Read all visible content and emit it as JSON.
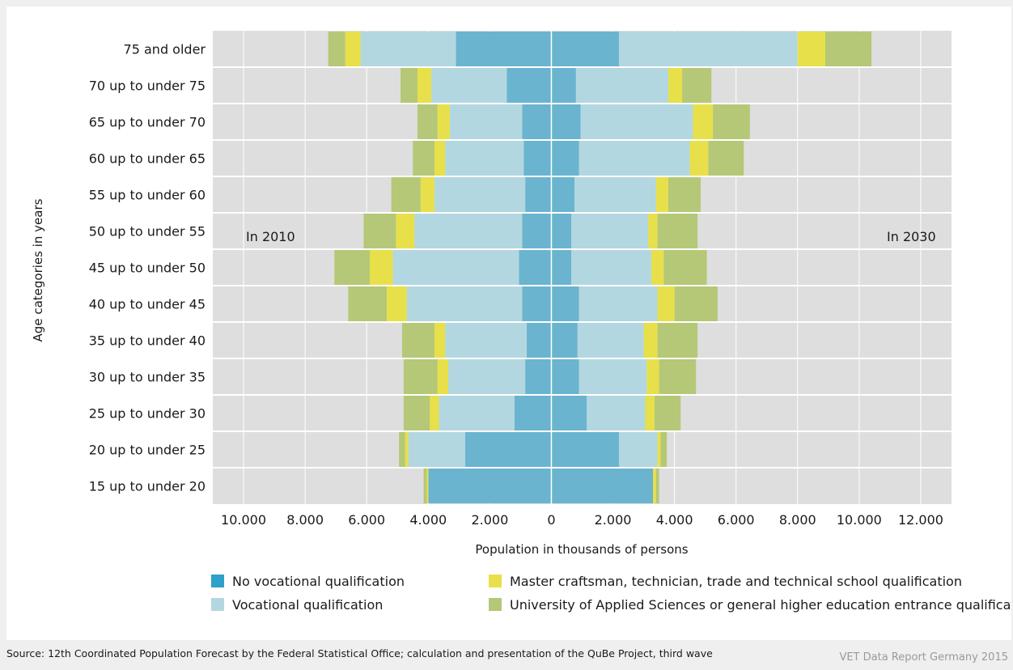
{
  "chart_data": {
    "type": "bar",
    "orientation": "horizontal-population-pyramid",
    "categories": [
      "75 and older",
      "70 up to under 75",
      "65 up to under 70",
      "60 up to under 65",
      "55 up to under 60",
      "50 up to under 55",
      "45 up to under 50",
      "40 up to under 45",
      "35 up to under 40",
      "30 up to under 35",
      "25 up to under 30",
      "20 up to under 25",
      "15 up to under 20"
    ],
    "ylabel": "Age categories in years",
    "xlabel": "Population in thousands of persons",
    "xlim": [
      -11000,
      13000
    ],
    "xticks": [
      {
        "value": -10000,
        "label": "10.000"
      },
      {
        "value": -8000,
        "label": "8.000"
      },
      {
        "value": -6000,
        "label": "6.000"
      },
      {
        "value": -4000,
        "label": "4.000"
      },
      {
        "value": -2000,
        "label": "2.000"
      },
      {
        "value": 0,
        "label": "0"
      },
      {
        "value": 2000,
        "label": "2.000"
      },
      {
        "value": 4000,
        "label": "4.000"
      },
      {
        "value": 6000,
        "label": "6.000"
      },
      {
        "value": 8000,
        "label": "8.000"
      },
      {
        "value": 10000,
        "label": "10.000"
      },
      {
        "value": 12000,
        "label": "12.000"
      }
    ],
    "grid": true,
    "left_label": "In 2010",
    "right_label": "In 2030",
    "series": [
      {
        "name": "No vocational qualification",
        "color": "#6ab4d0",
        "left": [
          3100,
          1450,
          950,
          900,
          850,
          950,
          1050,
          950,
          800,
          850,
          1200,
          2800,
          4000
        ],
        "right": [
          2200,
          800,
          950,
          900,
          750,
          650,
          650,
          900,
          850,
          900,
          1150,
          2200,
          3300
        ]
      },
      {
        "name": "Vocational qualification",
        "color": "#b3d7e0",
        "left": [
          3100,
          2450,
          2350,
          2550,
          2950,
          3500,
          4100,
          3750,
          2650,
          2500,
          2450,
          1850,
          0
        ],
        "right": [
          5800,
          3000,
          3650,
          3600,
          2650,
          2500,
          2600,
          2550,
          2150,
          2200,
          1900,
          1250,
          0
        ]
      },
      {
        "name": "Master craftsman, technician, trade and technical school qualification",
        "color": "#e8e04a",
        "left": [
          500,
          450,
          400,
          350,
          450,
          600,
          750,
          650,
          350,
          350,
          300,
          100,
          50
        ],
        "right": [
          900,
          450,
          650,
          600,
          400,
          300,
          400,
          550,
          450,
          400,
          300,
          100,
          100
        ]
      },
      {
        "name": "University of Applied Sciences or general higher education entrance qualification",
        "color": "#b5c877",
        "left": [
          550,
          550,
          650,
          700,
          950,
          1050,
          1150,
          1250,
          1050,
          1100,
          850,
          200,
          100
        ],
        "right": [
          1500,
          950,
          1200,
          1150,
          1050,
          1300,
          1400,
          1400,
          1300,
          1200,
          850,
          200,
          100
        ]
      }
    ],
    "legend_position": "bottom"
  },
  "footer": {
    "source": "Source: 12th Coordinated Population Forecast by the Federal Statistical Office; calculation and presentation of the QuBe Project, third wave",
    "report": "VET Data Report Germany 2015"
  }
}
